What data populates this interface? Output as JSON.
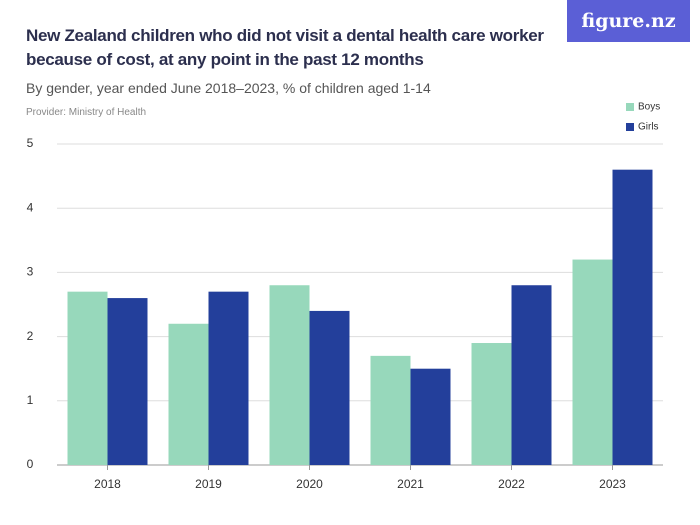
{
  "logo": "figure.nz",
  "chart_data": {
    "type": "bar",
    "title": "New Zealand children who did not visit a dental health care worker because of cost, at any point in the past 12 months",
    "subtitle": "By gender, year ended June 2018–2023, % of children aged 1-14",
    "provider": "Provider: Ministry of Health",
    "categories": [
      "2018",
      "2019",
      "2020",
      "2021",
      "2022",
      "2023"
    ],
    "series": [
      {
        "name": "Boys",
        "color": "#97d8bb",
        "values": [
          2.7,
          2.2,
          2.8,
          1.7,
          1.9,
          3.2
        ]
      },
      {
        "name": "Girls",
        "color": "#233f9b",
        "values": [
          2.6,
          2.7,
          2.4,
          1.5,
          2.8,
          4.6
        ]
      }
    ],
    "ylim": [
      0,
      5
    ],
    "yticks": [
      0,
      1,
      2,
      3,
      4,
      5
    ],
    "grid": true,
    "legend": "top-right"
  }
}
